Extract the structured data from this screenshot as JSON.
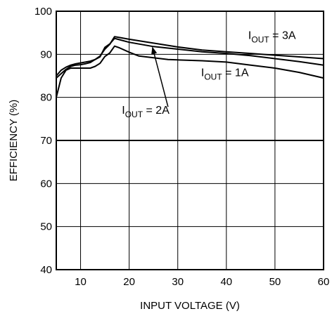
{
  "chart_data": {
    "type": "line",
    "xlabel": "INPUT VOLTAGE (V)",
    "ylabel": "EFFICIENCY (%)",
    "xlim": [
      5,
      60
    ],
    "ylim": [
      40,
      100
    ],
    "xticks": [
      10,
      20,
      30,
      40,
      50,
      60
    ],
    "yticks": [
      40,
      50,
      60,
      70,
      80,
      90,
      100
    ],
    "grid": true,
    "legend": "none",
    "series": [
      {
        "name": "IOUT = 3A",
        "label_prefix": "I",
        "label_sub": "OUT",
        "label_suffix": " = 3A",
        "x": [
          5,
          6,
          7,
          8,
          9,
          10,
          11,
          12,
          13,
          14,
          15,
          16,
          17,
          18,
          20,
          25,
          30,
          35,
          40,
          45,
          50,
          55,
          60
        ],
        "y": [
          84.5,
          85.5,
          86.5,
          87.2,
          87.5,
          87.6,
          87.8,
          88.1,
          88.8,
          89.6,
          91.2,
          92.3,
          94.1,
          93.9,
          93.5,
          92.6,
          91.7,
          91.0,
          90.6,
          90.2,
          89.8,
          89.4,
          89.0
        ]
      },
      {
        "name": "IOUT = 2A",
        "label_prefix": "I",
        "label_sub": "OUT",
        "label_suffix": " = 2A",
        "x": [
          5,
          6,
          7,
          8,
          9,
          10,
          11,
          12,
          13,
          14,
          15,
          16,
          17,
          18,
          20,
          25,
          30,
          35,
          40,
          45,
          50,
          55,
          60
        ],
        "y": [
          85.0,
          86.3,
          87.0,
          87.5,
          87.8,
          88.0,
          88.2,
          88.4,
          88.8,
          89.4,
          91.6,
          92.4,
          93.7,
          93.4,
          92.8,
          91.8,
          91.2,
          90.6,
          90.2,
          89.7,
          89.0,
          88.3,
          87.5
        ]
      },
      {
        "name": "IOUT = 1A",
        "label_prefix": "I",
        "label_sub": "OUT",
        "label_suffix": " = 1A",
        "x": [
          5,
          6,
          7,
          8,
          9,
          10,
          11,
          12,
          13,
          14,
          15,
          16,
          17,
          18,
          20,
          22,
          25,
          28,
          30,
          35,
          40,
          45,
          50,
          55,
          60
        ],
        "y": [
          80.0,
          84.5,
          86.3,
          86.8,
          86.8,
          86.8,
          86.8,
          86.8,
          87.2,
          87.9,
          89.5,
          90.3,
          91.9,
          91.5,
          90.5,
          89.6,
          89.2,
          88.8,
          88.7,
          88.5,
          88.2,
          87.5,
          86.8,
          85.8,
          84.5
        ]
      }
    ],
    "annotations": [
      {
        "series": "IOUT = 3A",
        "text_x": 44.5,
        "text_y": 93.6
      },
      {
        "series": "IOUT = 1A",
        "text_x": 34.8,
        "text_y": 84.9
      },
      {
        "series": "IOUT = 2A",
        "text_x": 18.5,
        "text_y": 76.2,
        "arrow_from": [
          28.0,
          77.8
        ],
        "arrow_to": [
          24.8,
          91.6
        ]
      }
    ]
  }
}
